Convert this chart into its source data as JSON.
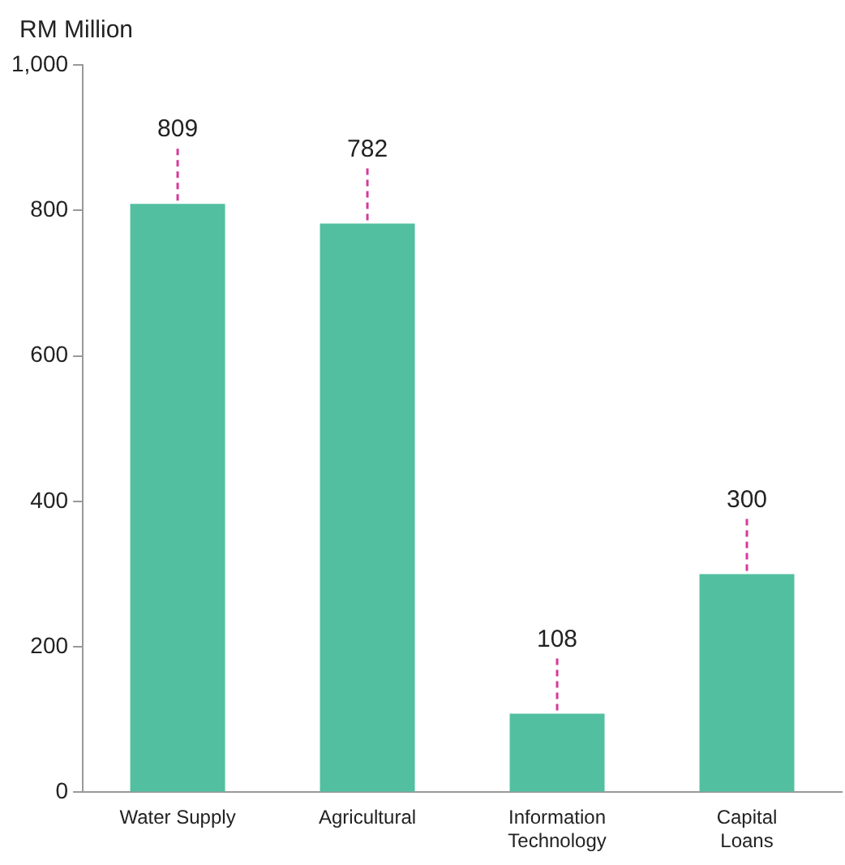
{
  "chart_data": {
    "type": "bar",
    "ylabel": "RM Million",
    "categories": [
      "Water Supply",
      "Agricultural",
      "Information Technology",
      "Capital Loans"
    ],
    "values": [
      809,
      782,
      108,
      300
    ],
    "color": "#52c0a0",
    "ylim": [
      0,
      1000
    ],
    "yticks": [
      0,
      200,
      400,
      600,
      800,
      {
        "value": 1000,
        "label": "1,000"
      }
    ],
    "grid": false,
    "legend": false,
    "data_labels": true
  }
}
